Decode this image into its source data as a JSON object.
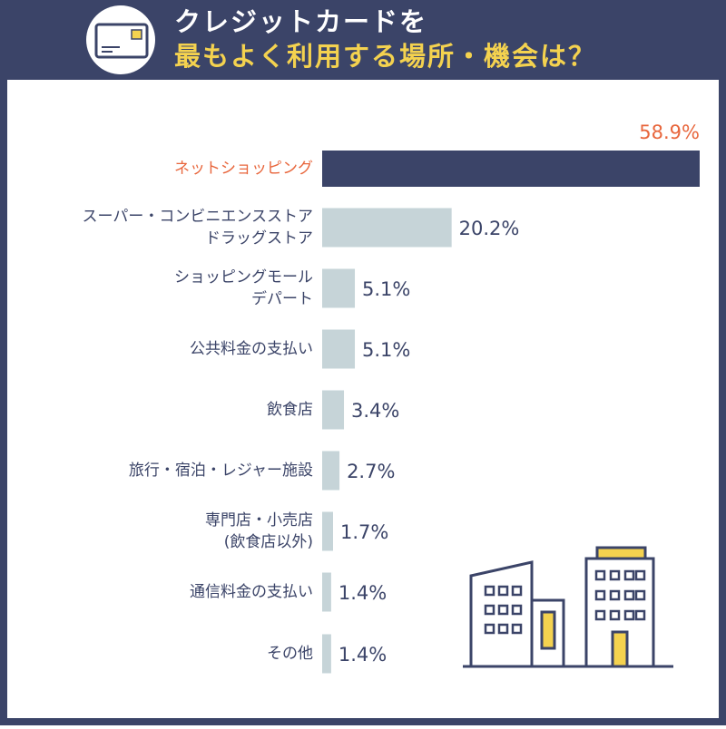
{
  "chart_data": {
    "type": "bar",
    "title": [
      "クレジットカードを",
      "最もよく利用する場所・機会は？"
    ],
    "categories": [
      [
        "ネットショッピング"
      ],
      [
        "スーパー・コンビニエンスストア",
        "ドラッグストア"
      ],
      [
        "ショッピングモール",
        "デパート"
      ],
      [
        "公共料金の支払い"
      ],
      [
        "飲食店"
      ],
      [
        "旅行・宿泊・レジャー施設"
      ],
      [
        "専門店・小売店",
        "(飲食店以外)"
      ],
      [
        "通信料金の支払い"
      ],
      [
        "その他"
      ]
    ],
    "values": [
      58.9,
      20.2,
      5.1,
      5.1,
      3.4,
      2.7,
      1.7,
      1.4,
      1.4
    ],
    "value_labels": [
      "58.9%",
      "20.2%",
      "5.1%",
      "5.1%",
      "3.4%",
      "2.7%",
      "1.7%",
      "1.4%",
      "1.4%"
    ],
    "colors": [
      "#3b4468",
      "#c6d4d8",
      "#c6d4d8",
      "#c6d4d8",
      "#c6d4d8",
      "#c6d4d8",
      "#c6d4d8",
      "#c6d4d8",
      "#c6d4d8"
    ],
    "highlight": 0,
    "highlight_label_color": "#e8663c"
  }
}
